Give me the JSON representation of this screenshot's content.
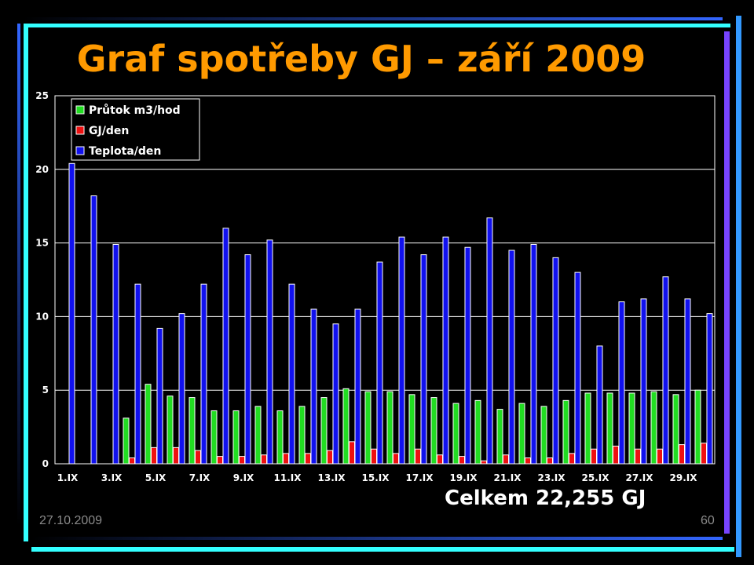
{
  "slide": {
    "title": "Graf spotřeby GJ – září 2009",
    "total": "Celkem 22,255 GJ",
    "date": "27.10.2009",
    "page": "60"
  },
  "colors": {
    "flow": "#22dd22",
    "gj": "#ee1111",
    "temp": "#1111ee",
    "title": "#ff9a00",
    "frame_cyan": "#33ffff",
    "frame_blue": "#3366ff",
    "frame_purple": "#7744ff"
  },
  "chart_data": {
    "type": "bar",
    "title": "",
    "xlabel": "",
    "ylabel": "",
    "ylim": [
      0,
      25
    ],
    "yticks": [
      0,
      5,
      10,
      15,
      20,
      25
    ],
    "grid": true,
    "legend_position": "top-left",
    "categories": [
      "1.IX",
      "2.IX",
      "3.IX",
      "4.IX",
      "5.IX",
      "6.IX",
      "7.IX",
      "8.IX",
      "9.IX",
      "10.IX",
      "11.IX",
      "12.IX",
      "13.IX",
      "14.IX",
      "15.IX",
      "16.IX",
      "17.IX",
      "18.IX",
      "19.IX",
      "20.IX",
      "21.IX",
      "22.IX",
      "23.IX",
      "24.IX",
      "25.IX",
      "26.IX",
      "27.IX",
      "28.IX",
      "29.IX",
      "30.IX"
    ],
    "category_labels_shown": [
      "1.IX",
      "3.IX",
      "5.IX",
      "7.IX",
      "9.IX",
      "11.IX",
      "13.IX",
      "15.IX",
      "17.IX",
      "19.IX",
      "21.IX",
      "23.IX",
      "25.IX",
      "27.IX",
      "29.IX"
    ],
    "series": [
      {
        "name": "Průtok m3/hod",
        "color": "#22dd22",
        "values": [
          0,
          0,
          0,
          3.1,
          5.4,
          4.6,
          4.5,
          3.6,
          3.6,
          3.9,
          3.6,
          3.9,
          4.5,
          5.1,
          4.9,
          4.9,
          4.7,
          4.5,
          4.1,
          4.3,
          3.7,
          4.1,
          3.9,
          4.3,
          4.8,
          4.8,
          4.8,
          4.9,
          4.7,
          5.0
        ]
      },
      {
        "name": "GJ/den",
        "color": "#ee1111",
        "values": [
          0,
          0,
          0,
          0.4,
          1.1,
          1.1,
          0.9,
          0.5,
          0.5,
          0.6,
          0.7,
          0.7,
          0.9,
          1.5,
          1.0,
          0.7,
          1.0,
          0.6,
          0.5,
          0.2,
          0.6,
          0.4,
          0.4,
          0.7,
          1.0,
          1.2,
          1.0,
          1.0,
          1.3,
          1.4
        ]
      },
      {
        "name": "Teplota/den",
        "color": "#1111ee",
        "values": [
          20.4,
          18.2,
          14.9,
          12.2,
          9.2,
          10.2,
          12.2,
          16.0,
          14.2,
          15.2,
          12.2,
          10.5,
          9.5,
          10.5,
          13.7,
          15.4,
          14.2,
          15.4,
          14.7,
          16.7,
          14.5,
          14.9,
          14.0,
          13.0,
          8.0,
          11.0,
          11.2,
          12.7,
          11.2,
          10.2
        ]
      }
    ]
  }
}
